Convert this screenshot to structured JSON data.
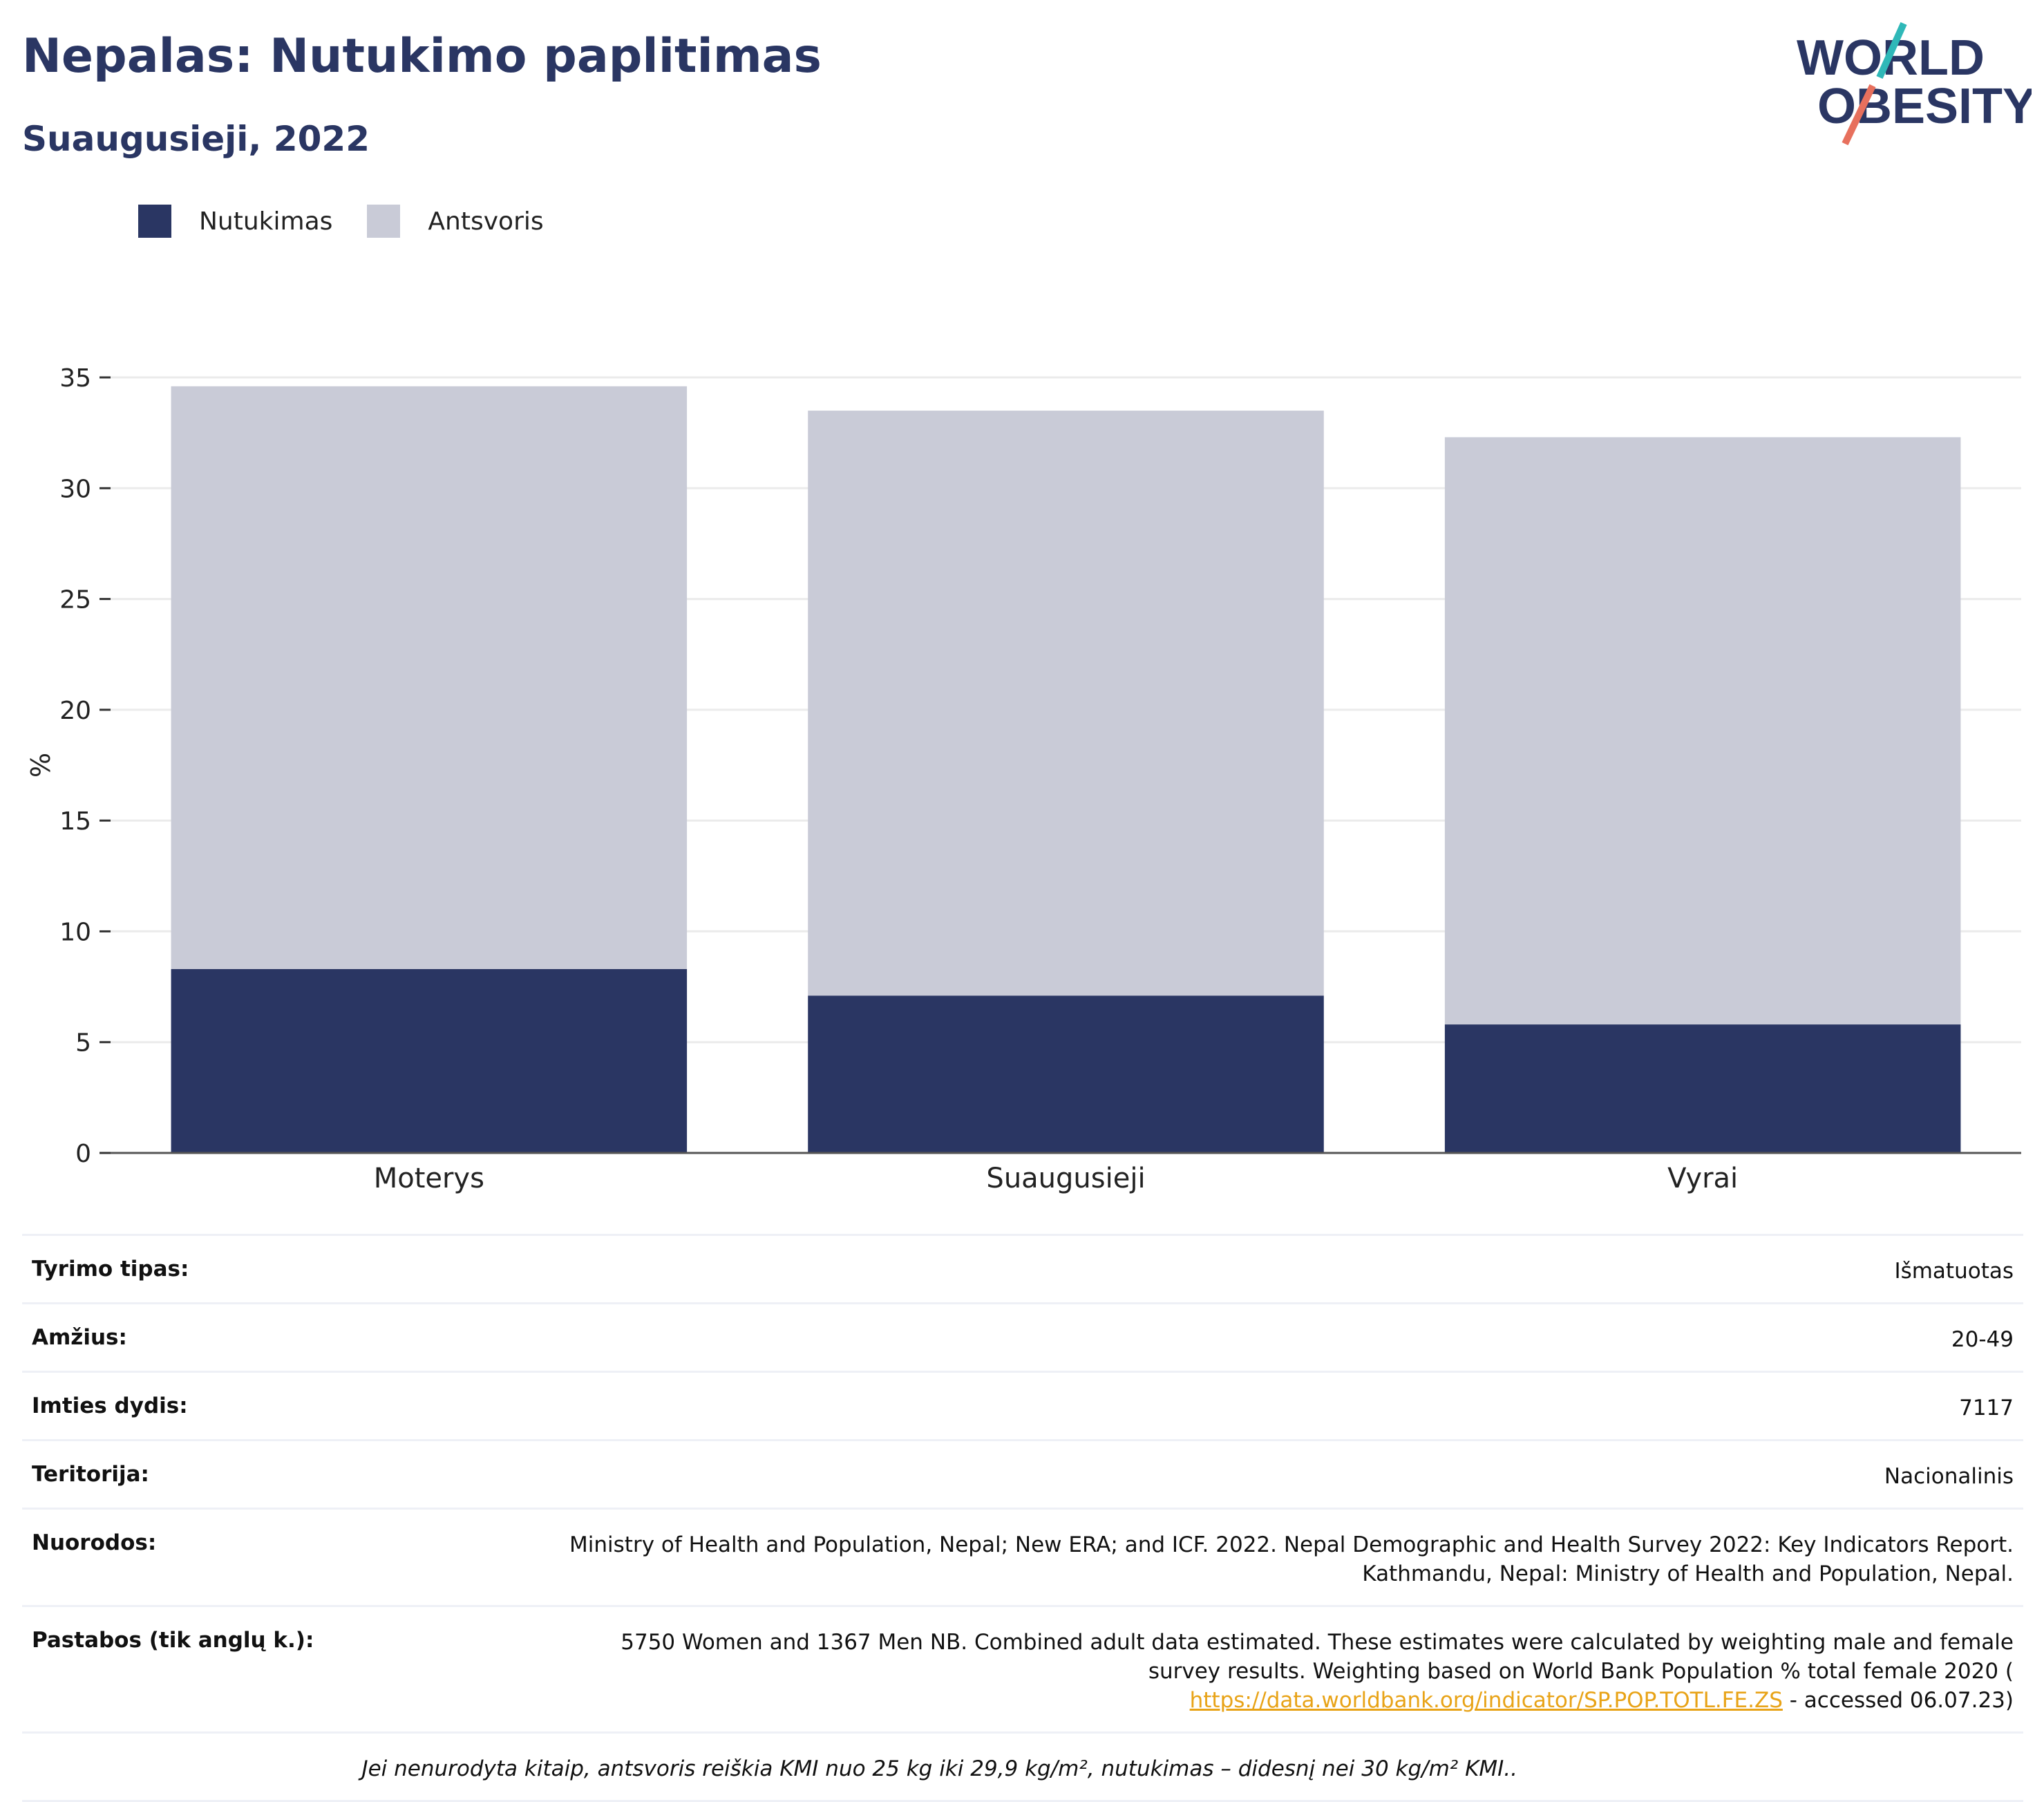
{
  "header": {
    "title": "Nepalas: Nutukimo paplitimas",
    "subtitle": "Suaugusieji, 2022"
  },
  "logo": {
    "line1": "WORLD",
    "line2": "OBESITY"
  },
  "colors": {
    "obesity": "#2a3663",
    "overweight": "#c9cbd7",
    "accent_teal": "#2fb8b8",
    "accent_red": "#e7705d"
  },
  "legend": [
    {
      "label": "Nutukimas",
      "color": "#2a3663"
    },
    {
      "label": "Antsvoris",
      "color": "#c9cbd7"
    }
  ],
  "chart_data": {
    "type": "bar",
    "stacked": true,
    "categories": [
      "Moterys",
      "Suaugusieji",
      "Vyrai"
    ],
    "series": [
      {
        "name": "Nutukimas",
        "values": [
          8.3,
          7.1,
          5.8
        ]
      },
      {
        "name": "Antsvoris",
        "values": [
          26.3,
          26.4,
          26.5
        ]
      }
    ],
    "ylabel": "%",
    "ylim": [
      0,
      35
    ],
    "yticks": [
      0,
      5,
      10,
      15,
      20,
      25,
      30,
      35
    ],
    "grid": true,
    "legend_position": "top-left"
  },
  "info": [
    {
      "key": "Tyrimo tipas:",
      "value": "Išmatuotas"
    },
    {
      "key": "Amžius:",
      "value": "20-49"
    },
    {
      "key": "Imties dydis:",
      "value": "7117"
    },
    {
      "key": "Teritorija:",
      "value": "Nacionalinis"
    },
    {
      "key": "Nuorodos:",
      "value_lines": [
        "Ministry of Health and Population, Nepal; New ERA; and ICF. 2022. Nepal Demographic and Health Survey 2022: Key Indicators Report.",
        "Kathmandu, Nepal: Ministry of Health and Population, Nepal."
      ]
    },
    {
      "key": "Pastabos (tik anglų k.):",
      "value_lines": [
        "5750 Women and 1367 Men NB. Combined adult data estimated. These estimates were calculated by weighting male and female",
        "survey results. Weighting based on World Bank Population % total female 2020 ("
      ],
      "link": "https://data.worldbank.org/indicator/SP.POP.TOTL.FE.ZS",
      "link_suffix": " - accessed 06.07.23)"
    }
  ],
  "footnote": "Jei nenurodyta kitaip, antsvoris reiškia KMI nuo 25 kg iki 29,9 kg/m², nutukimas – didesnį nei 30 kg/m² KMI.."
}
